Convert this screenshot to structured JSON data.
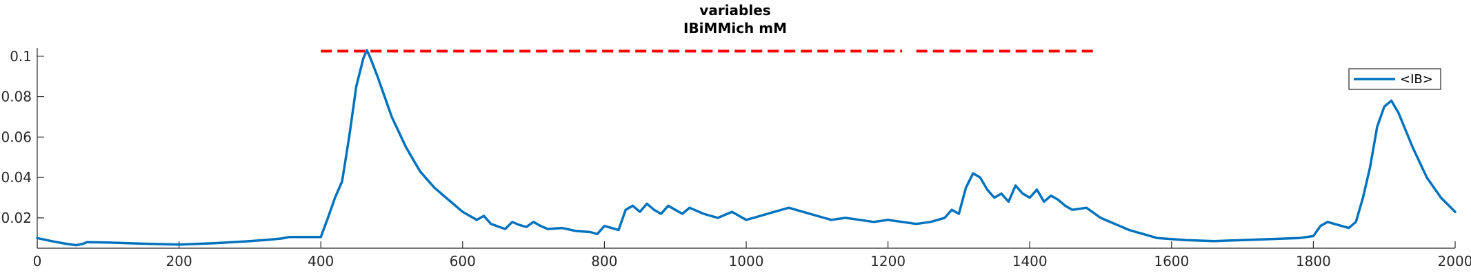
{
  "chart_data": {
    "type": "line",
    "title": "variables",
    "subtitle": "IBiMMich mM",
    "xlabel": "",
    "ylabel": "",
    "xlim": [
      0,
      2000
    ],
    "ylim": [
      0.005,
      0.104
    ],
    "xticks": [
      0,
      200,
      400,
      600,
      800,
      1000,
      1200,
      1400,
      1600,
      1800,
      2000
    ],
    "yticks": [
      0.02,
      0.04,
      0.06,
      0.08,
      0.1
    ],
    "ytick_labels": [
      "0.02",
      "0.04",
      "0.06",
      "0.08",
      "0.1"
    ],
    "grid": false,
    "legend_position": "top-right",
    "series": [
      {
        "name": "<IB>",
        "color": "#0072BD",
        "x": [
          0,
          20,
          40,
          55,
          65,
          70,
          100,
          150,
          200,
          250,
          300,
          320,
          345,
          355,
          380,
          400,
          410,
          420,
          430,
          440,
          450,
          460,
          465,
          470,
          480,
          490,
          500,
          520,
          540,
          560,
          580,
          600,
          620,
          630,
          640,
          660,
          670,
          680,
          690,
          700,
          710,
          720,
          740,
          760,
          780,
          790,
          800,
          810,
          820,
          830,
          840,
          850,
          860,
          870,
          880,
          890,
          900,
          910,
          920,
          940,
          960,
          980,
          1000,
          1020,
          1040,
          1060,
          1080,
          1100,
          1120,
          1140,
          1160,
          1180,
          1200,
          1220,
          1240,
          1260,
          1280,
          1290,
          1300,
          1310,
          1320,
          1330,
          1340,
          1350,
          1360,
          1370,
          1380,
          1390,
          1400,
          1410,
          1420,
          1430,
          1440,
          1450,
          1460,
          1480,
          1500,
          1540,
          1580,
          1620,
          1660,
          1700,
          1740,
          1780,
          1800,
          1810,
          1820,
          1840,
          1850,
          1860,
          1870,
          1880,
          1890,
          1900,
          1910,
          1920,
          1940,
          1960,
          1980,
          2000
        ],
        "values": [
          0.01,
          0.0085,
          0.0072,
          0.0065,
          0.0072,
          0.008,
          0.0078,
          0.0072,
          0.0068,
          0.0075,
          0.0085,
          0.009,
          0.0098,
          0.0105,
          0.0105,
          0.0105,
          0.02,
          0.03,
          0.038,
          0.06,
          0.085,
          0.099,
          0.103,
          0.099,
          0.09,
          0.08,
          0.07,
          0.055,
          0.043,
          0.035,
          0.029,
          0.023,
          0.019,
          0.021,
          0.017,
          0.0145,
          0.018,
          0.0165,
          0.0155,
          0.018,
          0.016,
          0.0145,
          0.015,
          0.0135,
          0.013,
          0.012,
          0.016,
          0.015,
          0.014,
          0.024,
          0.026,
          0.023,
          0.027,
          0.024,
          0.022,
          0.026,
          0.024,
          0.022,
          0.025,
          0.022,
          0.02,
          0.023,
          0.019,
          0.021,
          0.023,
          0.025,
          0.023,
          0.021,
          0.019,
          0.02,
          0.019,
          0.018,
          0.019,
          0.018,
          0.017,
          0.018,
          0.02,
          0.024,
          0.022,
          0.035,
          0.042,
          0.04,
          0.034,
          0.03,
          0.032,
          0.028,
          0.036,
          0.032,
          0.03,
          0.034,
          0.028,
          0.031,
          0.029,
          0.026,
          0.024,
          0.025,
          0.02,
          0.014,
          0.01,
          0.009,
          0.0085,
          0.009,
          0.0095,
          0.01,
          0.011,
          0.016,
          0.018,
          0.016,
          0.015,
          0.018,
          0.03,
          0.045,
          0.065,
          0.075,
          0.078,
          0.072,
          0.055,
          0.04,
          0.03,
          0.023
        ]
      }
    ],
    "annotations": [
      {
        "type": "dashed-hline",
        "color": "#ff0000",
        "y": 0.1025,
        "x_segments": [
          [
            400,
            1220
          ],
          [
            1240,
            1490
          ]
        ]
      }
    ]
  }
}
